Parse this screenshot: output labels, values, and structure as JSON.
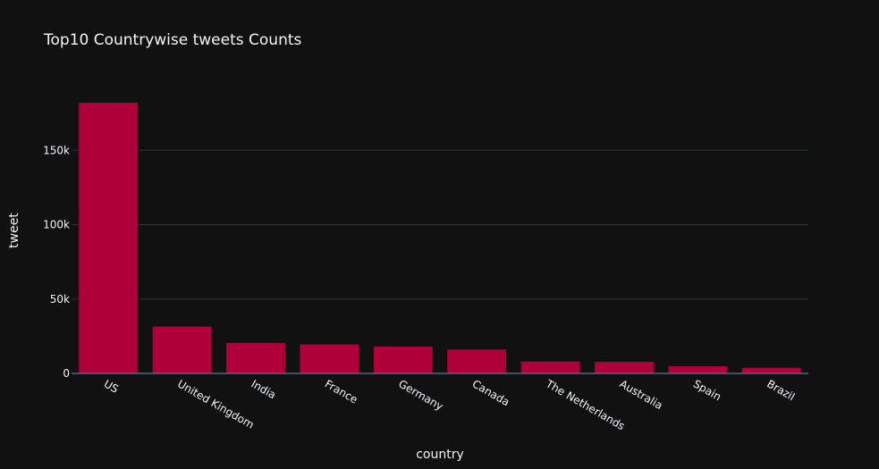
{
  "chart_data": {
    "type": "bar",
    "title": "Top10 Countrywise tweets Counts",
    "xlabel": "country",
    "ylabel": "tweet",
    "categories": [
      "US",
      "United Kingdom",
      "India",
      "France",
      "Germany",
      "Canada",
      "The Netherlands",
      "Australia",
      "Spain",
      "Brazil"
    ],
    "values": [
      182000,
      31500,
      20500,
      19500,
      18000,
      16000,
      8000,
      7800,
      4800,
      3800
    ],
    "ylim": [
      0,
      182000
    ],
    "yticks": [
      0,
      50000,
      100000,
      150000
    ],
    "ytick_labels": [
      "0",
      "50k",
      "100k",
      "150k"
    ],
    "grid": true,
    "bar_color": "#b0003a",
    "background_color": "#111111",
    "grid_color": "#283442"
  }
}
